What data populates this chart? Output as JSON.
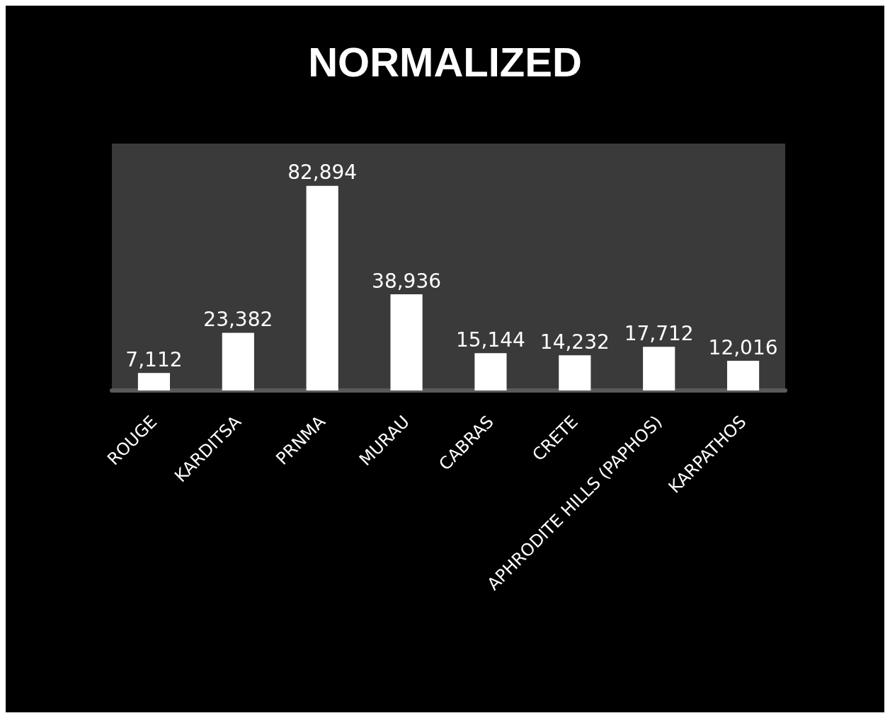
{
  "chart_data": {
    "type": "bar",
    "title": "NORMALIZED",
    "categories": [
      "ROUGE",
      "KARDITSA",
      "PRNMA",
      "MURAU",
      "CABRAS",
      "CRETE",
      "APHRODITE HILLS (PAPHOS)",
      "KARPATHOS"
    ],
    "values": [
      7112,
      23382,
      82894,
      38936,
      15144,
      14232,
      17712,
      12016
    ],
    "color": "#ffffff",
    "value_labels": [
      "7,112",
      "23,382",
      "82,894",
      "38,936",
      "15,144",
      "14,232",
      "17,712",
      "12,016"
    ]
  }
}
